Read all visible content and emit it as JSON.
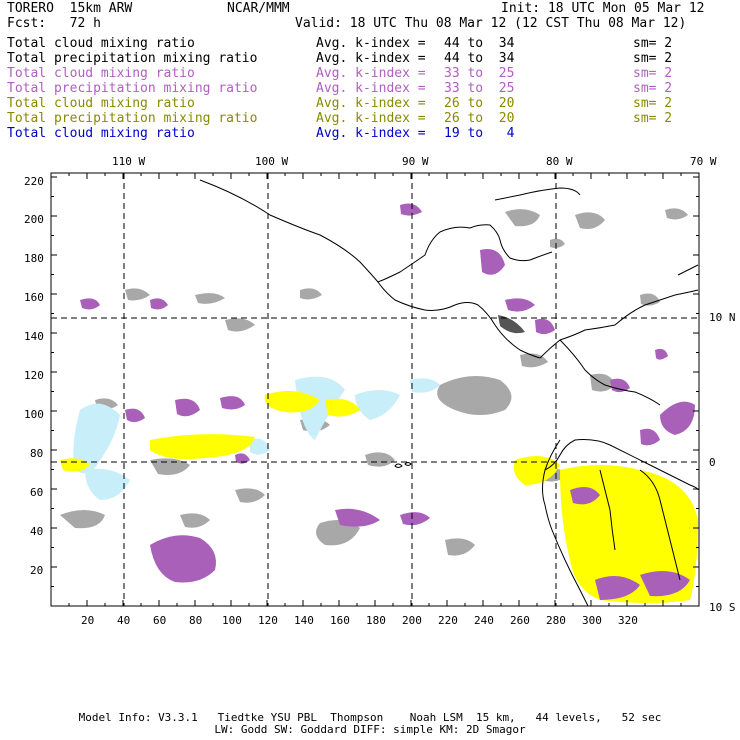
{
  "header": {
    "model": "TORERO  15km ARW",
    "org": "NCAR/MMM",
    "init": "Init: 18 UTC Mon 05 Mar 12",
    "fcst": "Fcst:   72 h",
    "valid": "Valid: 18 UTC Thu 08 Mar 12 (12 CST Thu 08 Mar 12)"
  },
  "legend": [
    {
      "field": "Total cloud mixing ratio",
      "kindex": "Avg. k-index = ",
      "range": "44 to  34",
      "sm": "sm= 2",
      "color": "#000000"
    },
    {
      "field": "Total precipitation mixing ratio",
      "kindex": "Avg. k-index = ",
      "range": "44 to  34",
      "sm": "sm= 2",
      "color": "#000000"
    },
    {
      "field": "Total cloud mixing ratio",
      "kindex": "Avg. k-index = ",
      "range": "33 to  25",
      "sm": "sm= 2",
      "color": "#b060c0"
    },
    {
      "field": "Total precipitation mixing ratio",
      "kindex": "Avg. k-index = ",
      "range": "33 to  25",
      "sm": "sm= 2",
      "color": "#b060c0"
    },
    {
      "field": "Total cloud mixing ratio",
      "kindex": "Avg. k-index = ",
      "range": "26 to  20",
      "sm": "sm= 2",
      "color": "#8a8a00"
    },
    {
      "field": "Total precipitation mixing ratio",
      "kindex": "Avg. k-index = ",
      "range": "26 to  20",
      "sm": "sm= 2",
      "color": "#8a8a00"
    },
    {
      "field": "Total cloud mixing ratio",
      "kindex": "Avg. k-index = ",
      "range": "19 to   4",
      "sm": "",
      "color": "#0000cc"
    }
  ],
  "axes": {
    "top_lon": [
      "110 W",
      "100 W",
      "90 W",
      "80 W",
      "70 W"
    ],
    "right_lat": [
      "10 N",
      "0",
      "10 S"
    ],
    "left": [
      "220",
      "200",
      "180",
      "160",
      "140",
      "120",
      "100",
      "80",
      "60",
      "40",
      "20"
    ],
    "bottom": [
      "20",
      "40",
      "60",
      "80",
      "100",
      "120",
      "140",
      "160",
      "180",
      "200",
      "220",
      "240",
      "260",
      "280",
      "300",
      "320"
    ]
  },
  "colors": {
    "purple": "#a860b8",
    "gray": "#a8a8a8",
    "yellow": "#ffff00",
    "cyan": "#c8eefa",
    "coast": "#000000"
  },
  "footer": {
    "line1": "Model Info: V3.3.1   Tiedtke YSU PBL  Thompson    Noah LSM  15 km,   44 levels,   52 sec",
    "line2": "LW: Godd SW: Goddard DIFF: simple KM: 2D Smagor"
  }
}
